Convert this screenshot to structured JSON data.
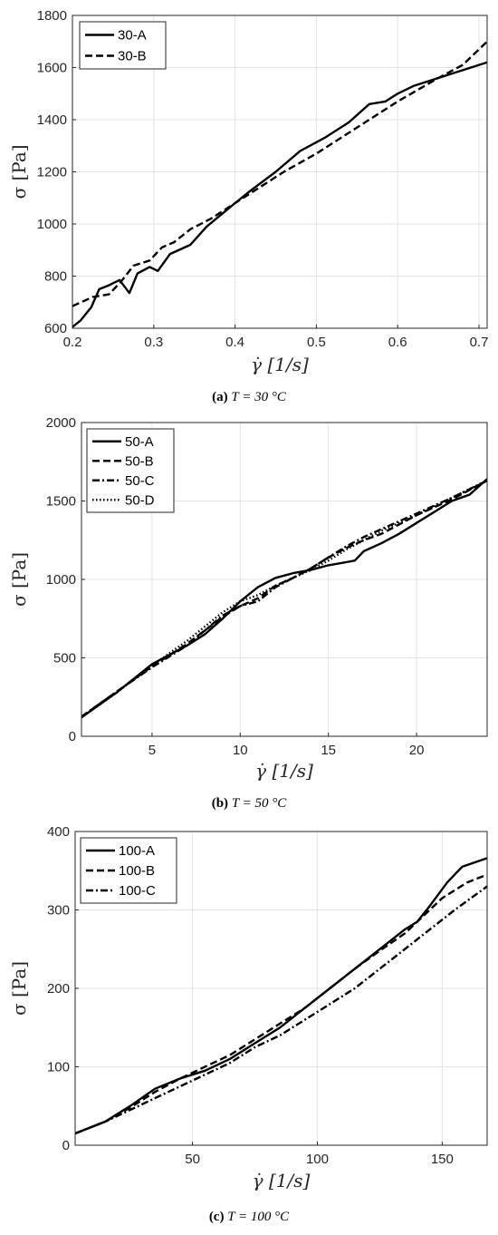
{
  "charts": [
    {
      "caption_label": "(a)",
      "caption_text": "T = 30 °C",
      "chart_data": {
        "type": "line",
        "xlabel": "γ̇ [1/s]",
        "ylabel": "σ [Pa]",
        "xlim": [
          0.2,
          0.71
        ],
        "ylim": [
          600,
          1800
        ],
        "xticks": [
          0.2,
          0.3,
          0.4,
          0.5,
          0.6,
          0.7
        ],
        "yticks": [
          600,
          800,
          1000,
          1200,
          1400,
          1600,
          1800
        ],
        "grid": true,
        "legend_position": "top-left",
        "series": [
          {
            "name": "30-A",
            "style": "solid",
            "x": [
              0.2,
              0.21,
              0.223,
              0.233,
              0.245,
              0.258,
              0.27,
              0.28,
              0.295,
              0.305,
              0.32,
              0.345,
              0.365,
              0.4,
              0.42,
              0.45,
              0.48,
              0.51,
              0.54,
              0.565,
              0.585,
              0.6,
              0.62,
              0.66,
              0.71
            ],
            "y": [
              605,
              630,
              680,
              750,
              765,
              785,
              735,
              810,
              835,
              820,
              885,
              920,
              990,
              1080,
              1130,
              1200,
              1280,
              1330,
              1390,
              1460,
              1470,
              1500,
              1530,
              1570,
              1620
            ]
          },
          {
            "name": "30-B",
            "style": "dashed",
            "x": [
              0.2,
              0.225,
              0.245,
              0.26,
              0.275,
              0.295,
              0.31,
              0.325,
              0.345,
              0.37,
              0.4,
              0.43,
              0.46,
              0.5,
              0.53,
              0.56,
              0.6,
              0.65,
              0.68,
              0.71
            ],
            "y": [
              685,
              720,
              730,
              780,
              840,
              860,
              910,
              930,
              980,
              1020,
              1080,
              1140,
              1200,
              1270,
              1330,
              1390,
              1470,
              1560,
              1610,
              1700
            ]
          }
        ]
      }
    },
    {
      "caption_label": "(b)",
      "caption_text": "T = 50 °C",
      "chart_data": {
        "type": "line",
        "xlabel": "γ̇ [1/s]",
        "ylabel": "σ [Pa]",
        "xlim": [
          1,
          24
        ],
        "ylim": [
          0,
          2000
        ],
        "xticks": [
          5,
          10,
          15,
          20
        ],
        "yticks": [
          0,
          500,
          1000,
          1500,
          2000
        ],
        "grid": true,
        "legend_position": "top-left",
        "series": [
          {
            "name": "50-A",
            "style": "solid",
            "x": [
              1,
              2,
              3,
              4,
              5,
              6,
              7,
              8,
              9,
              10,
              11,
              12,
              13,
              14,
              15,
              16,
              16.5,
              17,
              18,
              19,
              20,
              21,
              22,
              23,
              24
            ],
            "y": [
              120,
              200,
              280,
              370,
              460,
              520,
              580,
              650,
              750,
              860,
              950,
              1010,
              1040,
              1060,
              1090,
              1110,
              1120,
              1180,
              1230,
              1290,
              1360,
              1430,
              1500,
              1540,
              1640
            ]
          },
          {
            "name": "50-B",
            "style": "dashed",
            "x": [
              1,
              3,
              5,
              7,
              9,
              10,
              11,
              12,
              13,
              14,
              15,
              16,
              17,
              18,
              20,
              22,
              24
            ],
            "y": [
              125,
              285,
              445,
              590,
              760,
              830,
              880,
              960,
              1010,
              1070,
              1140,
              1200,
              1250,
              1290,
              1410,
              1510,
              1630
            ]
          },
          {
            "name": "50-C",
            "style": "dashdot",
            "x": [
              1,
              3,
              5,
              7,
              9,
              10,
              11,
              12,
              13,
              14,
              15,
              16,
              17,
              18,
              20,
              22,
              24
            ],
            "y": [
              125,
              285,
              440,
              580,
              770,
              830,
              860,
              950,
              1010,
              1070,
              1140,
              1210,
              1270,
              1320,
              1420,
              1520,
              1630
            ]
          },
          {
            "name": "50-D",
            "style": "dotted",
            "x": [
              1,
              3,
              5,
              7,
              9,
              10,
              11,
              12,
              13,
              14,
              15,
              16,
              17,
              18,
              20,
              22,
              24
            ],
            "y": [
              120,
              280,
              450,
              610,
              790,
              860,
              900,
              960,
              1010,
              1060,
              1120,
              1190,
              1250,
              1310,
              1410,
              1520,
              1630
            ]
          }
        ]
      }
    },
    {
      "caption_label": "(c)",
      "caption_text": "T = 100 °C",
      "chart_data": {
        "type": "line",
        "xlabel": "γ̇ [1/s]",
        "ylabel": "σ [Pa]",
        "xlim": [
          3,
          168
        ],
        "ylim": [
          0,
          400
        ],
        "xticks": [
          50,
          100,
          150
        ],
        "yticks": [
          0,
          100,
          200,
          300,
          400
        ],
        "grid": true,
        "legend_position": "top-left",
        "series": [
          {
            "name": "100-A",
            "style": "solid",
            "x": [
              3,
              15,
              25,
              35,
              45,
              55,
              65,
              75,
              85,
              95,
              105,
              115,
              125,
              135,
              140,
              145,
              152,
              158,
              168
            ],
            "y": [
              15,
              30,
              50,
              72,
              85,
              95,
              110,
              130,
              150,
              175,
              200,
              225,
              250,
              275,
              285,
              305,
              335,
              355,
              366
            ]
          },
          {
            "name": "100-B",
            "style": "dashed",
            "x": [
              3,
              15,
              25,
              35,
              45,
              55,
              65,
              75,
              85,
              95,
              105,
              115,
              125,
              135,
              140,
              150,
              160,
              168
            ],
            "y": [
              15,
              30,
              48,
              68,
              85,
              100,
              115,
              135,
              155,
              175,
              200,
              225,
              248,
              270,
              285,
              315,
              335,
              345
            ]
          },
          {
            "name": "100-C",
            "style": "dashdot",
            "x": [
              3,
              15,
              25,
              35,
              45,
              55,
              65,
              75,
              85,
              95,
              105,
              115,
              125,
              135,
              145,
              155,
              168
            ],
            "y": [
              15,
              30,
              45,
              60,
              75,
              90,
              105,
              125,
              140,
              160,
              180,
              200,
              225,
              250,
              275,
              300,
              330
            ]
          }
        ]
      }
    }
  ]
}
